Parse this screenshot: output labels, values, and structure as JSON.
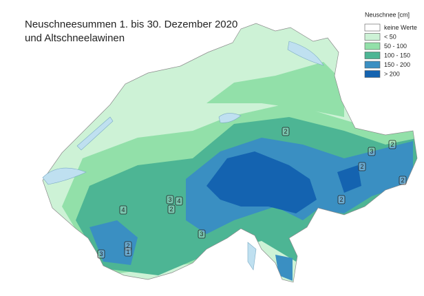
{
  "title": {
    "line1": "Neuschneesummen 1. bis 30. Dezember 2020",
    "line2": "und Altschneelawinen"
  },
  "legend": {
    "title": "Neuschnee [cm]",
    "items": [
      {
        "label": "keine Werte",
        "color": "#ffffff"
      },
      {
        "label": "< 50",
        "color": "#cdf2d6"
      },
      {
        "label": "50 - 100",
        "color": "#92e0a9"
      },
      {
        "label": "100 - 150",
        "color": "#4db594"
      },
      {
        "label": "150 - 200",
        "color": "#3a8fc2"
      },
      {
        "label": "> 200",
        "color": "#1463b0"
      }
    ]
  },
  "markers": [
    {
      "label": "2"
    },
    {
      "label": "3"
    },
    {
      "label": "2"
    },
    {
      "label": "2"
    },
    {
      "label": "2"
    },
    {
      "label": "2"
    },
    {
      "label": "3"
    },
    {
      "label": "4"
    },
    {
      "label": "2"
    },
    {
      "label": "4"
    },
    {
      "label": "3"
    },
    {
      "label": "2"
    },
    {
      "label": "1"
    },
    {
      "label": "3"
    }
  ]
}
